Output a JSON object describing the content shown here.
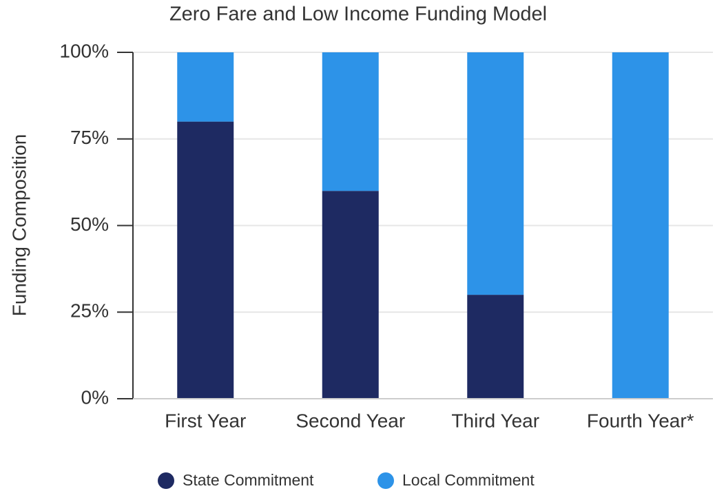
{
  "chart_data": {
    "type": "stacked_bar",
    "title": "Zero Fare and Low Income Funding Model",
    "y_label": "Funding Composition",
    "categories": [
      "First Year",
      "Second Year",
      "Third Year",
      "Fourth Year*"
    ],
    "series": [
      {
        "name": "State Commitment",
        "color": "#1e2a62",
        "values": [
          80,
          60,
          30,
          0
        ]
      },
      {
        "name": "Local Commitment",
        "color": "#2d93e8",
        "values": [
          20,
          40,
          70,
          100
        ]
      }
    ],
    "ylim": [
      0,
      100
    ],
    "yticks": [
      {
        "value": 0,
        "label": "0%"
      },
      {
        "value": 25,
        "label": "25%"
      },
      {
        "value": 50,
        "label": "50%"
      },
      {
        "value": 75,
        "label": "75%"
      },
      {
        "value": 100,
        "label": "100%"
      }
    ],
    "grid": true,
    "legend": "bottom"
  }
}
